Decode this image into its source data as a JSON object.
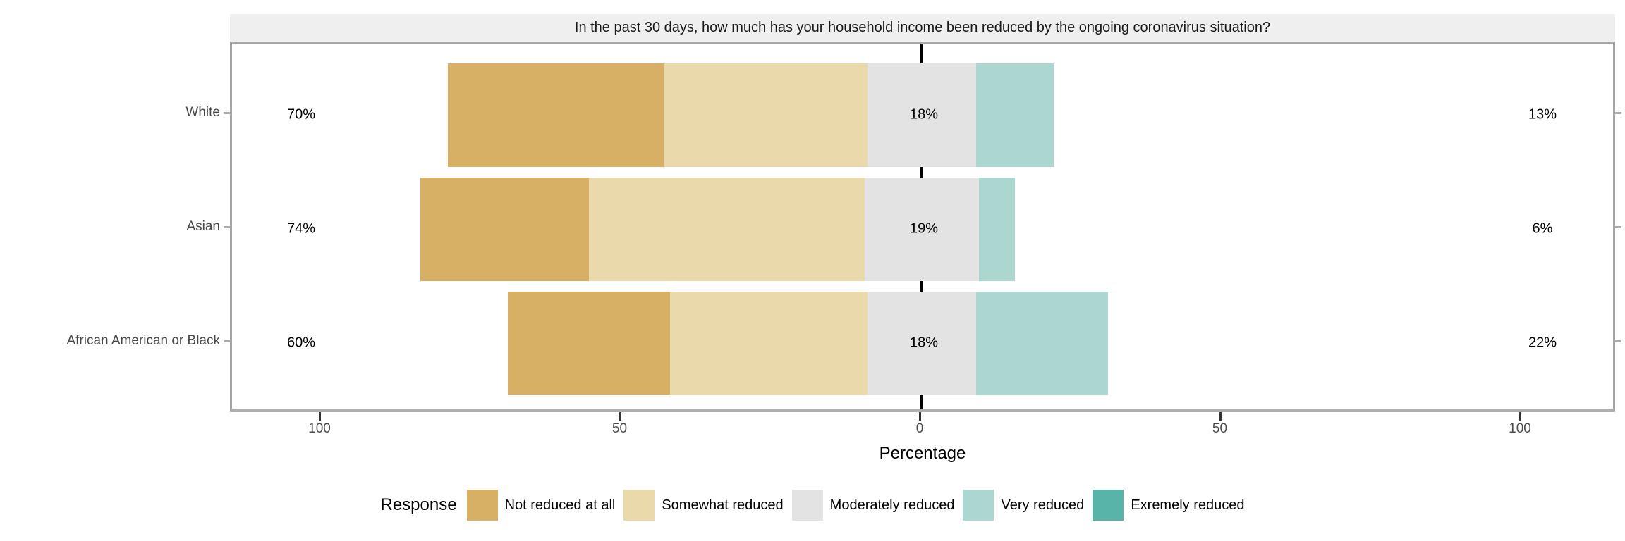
{
  "strip": {
    "title": "In the past 30 days, how much has your household income been reduced by the ongoing coronavirus situation?"
  },
  "axis": {
    "xlabel": "Percentage"
  },
  "legend": {
    "title": "Response",
    "items": [
      {
        "label": "Not reduced at all",
        "color": "#D8B065"
      },
      {
        "label": "Somewhat reduced",
        "color": "#EAD9AA"
      },
      {
        "label": "Moderately reduced",
        "color": "#E3E3E3"
      },
      {
        "label": "Very reduced",
        "color": "#ACD7D1"
      },
      {
        "label": "Exremely reduced",
        "color": "#58B3A9"
      }
    ]
  },
  "colors": {
    "strip_bg": "#EFEFEF",
    "panel_border": "#A6A6A6",
    "axis_line": "#AFAFAF",
    "zero_line": "#000000",
    "tick": "#333333",
    "tick_label": "#4D4D4D",
    "category_label": "#474747",
    "value_label": "#000000"
  },
  "chart_data": {
    "type": "bar",
    "variant": "diverging-stacked-likert",
    "title": "In the past 30 days, how much has your household income been reduced by the ongoing coronavirus situation?",
    "categories": [
      "White",
      "Asian",
      "African American or Black"
    ],
    "series": [
      {
        "name": "Not reduced at all",
        "color": "#D8B065",
        "values": [
          36,
          28,
          27
        ]
      },
      {
        "name": "Somewhat reduced",
        "color": "#EAD9AA",
        "values": [
          34,
          46,
          33
        ]
      },
      {
        "name": "Moderately reduced",
        "color": "#E3E3E3",
        "values": [
          18,
          19,
          18
        ]
      },
      {
        "name": "Very reduced",
        "color": "#ACD7D1",
        "values": [
          13,
          6,
          22
        ]
      },
      {
        "name": "Exremely reduced",
        "color": "#58B3A9",
        "values": [
          0,
          0,
          0
        ]
      }
    ],
    "value_labels": {
      "left": [
        "70%",
        "74%",
        "60%"
      ],
      "center": [
        "18%",
        "19%",
        "18%"
      ],
      "right": [
        "13%",
        "6%",
        "22%"
      ]
    },
    "neutral_series": "Moderately reduced",
    "neutral_centered_on_zero": true,
    "xlabel": "Percentage",
    "x_ticks": [
      -100,
      -50,
      0,
      50,
      100
    ],
    "x_tick_labels": [
      "100",
      "50",
      "0",
      "50",
      "100"
    ],
    "xlim": [
      -115,
      116
    ],
    "grid": false,
    "legend_position": "bottom"
  }
}
